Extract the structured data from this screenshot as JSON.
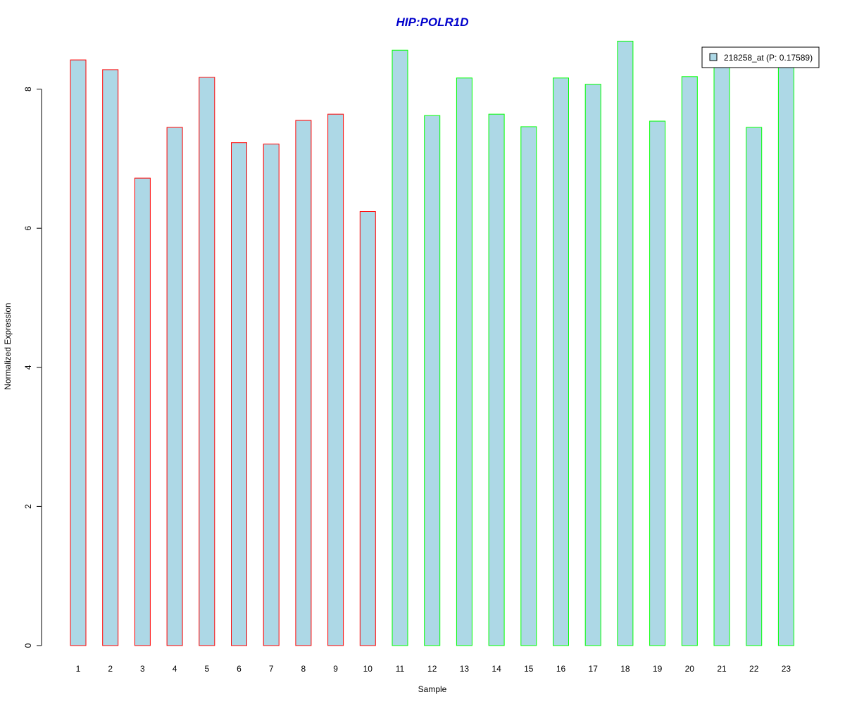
{
  "chart_data": {
    "type": "bar",
    "title": "HIP:POLR1D",
    "xlabel": "Sample",
    "ylabel": "Normalized Expression",
    "categories": [
      "1",
      "2",
      "3",
      "4",
      "5",
      "6",
      "7",
      "8",
      "9",
      "10",
      "11",
      "12",
      "13",
      "14",
      "15",
      "16",
      "17",
      "18",
      "19",
      "20",
      "21",
      "22",
      "23"
    ],
    "series": [
      {
        "name": "218258_at (P: 0.17589)",
        "values": [
          8.42,
          8.28,
          6.72,
          7.45,
          8.17,
          7.23,
          7.21,
          7.55,
          7.64,
          6.24,
          8.56,
          7.62,
          8.16,
          7.64,
          7.46,
          8.16,
          8.07,
          8.69,
          7.54,
          8.18,
          8.33,
          7.45,
          8.35
        ]
      }
    ],
    "bar_border_colors": [
      "#ff0000",
      "#ff0000",
      "#ff0000",
      "#ff0000",
      "#ff0000",
      "#ff0000",
      "#ff0000",
      "#ff0000",
      "#ff0000",
      "#ff0000",
      "#00ff00",
      "#00ff00",
      "#00ff00",
      "#00ff00",
      "#00ff00",
      "#00ff00",
      "#00ff00",
      "#00ff00",
      "#00ff00",
      "#00ff00",
      "#00ff00",
      "#00ff00",
      "#00ff00"
    ],
    "bar_fill": "#add8e6",
    "title_color": "#0000cc",
    "yticks": [
      0,
      2,
      4,
      6,
      8
    ],
    "ylim": [
      0,
      8.8
    ],
    "legend_placement": "top-right",
    "grid": false
  }
}
